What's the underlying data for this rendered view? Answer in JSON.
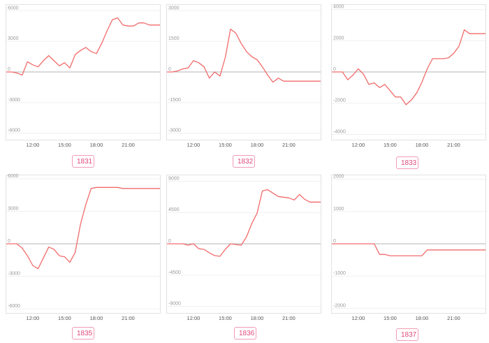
{
  "chart_data": [
    {
      "type": "line",
      "label": "1831",
      "ylim": [
        -6500,
        6500
      ],
      "yticks": [
        6000,
        3000,
        0,
        -3000,
        -6000
      ],
      "ytick_labels": [
        "6000",
        "3000",
        "0",
        "-3000",
        "-6000"
      ],
      "xlim": [
        9.5,
        24
      ],
      "xticks": [
        12,
        15,
        18,
        21
      ],
      "xtick_labels": [
        "12:00",
        "15:00",
        "18:00",
        "21:00"
      ],
      "series": [
        {
          "color": "#f26b6b",
          "x": [
            9.5,
            10.0,
            10.5,
            11.0,
            11.5,
            12.0,
            12.5,
            13.0,
            13.5,
            14.0,
            14.5,
            15.0,
            15.5,
            16.0,
            16.5,
            17.0,
            17.5,
            18.0,
            18.5,
            19.0,
            19.5,
            20.0,
            20.5,
            21.0,
            21.5,
            22.0,
            22.5,
            23.0,
            23.5,
            24.0
          ],
          "y": [
            0,
            0,
            -100,
            -300,
            1000,
            700,
            500,
            1100,
            1600,
            1100,
            600,
            900,
            400,
            1700,
            2100,
            2400,
            2000,
            1800,
            2800,
            4000,
            5100,
            5300,
            4600,
            4500,
            4500,
            4800,
            4800,
            4600,
            4600,
            4600
          ]
        }
      ]
    },
    {
      "type": "line",
      "label": "1832",
      "ylim": [
        -3250,
        3250
      ],
      "yticks": [
        3000,
        1500,
        0,
        -1500,
        -3000
      ],
      "ytick_labels": [
        "3000",
        "1500",
        "0",
        "-1500",
        "-3000"
      ],
      "xlim": [
        9.5,
        24
      ],
      "xticks": [
        12,
        15,
        18,
        21
      ],
      "xtick_labels": [
        "12:00",
        "15:00",
        "18:00",
        "21:00"
      ],
      "series": [
        {
          "color": "#f26b6b",
          "x": [
            9.5,
            10.0,
            10.5,
            11.0,
            11.5,
            12.0,
            12.5,
            13.0,
            13.5,
            14.0,
            14.5,
            15.0,
            15.5,
            16.0,
            16.5,
            17.0,
            17.5,
            18.0,
            18.5,
            19.0,
            19.5,
            20.0,
            20.5,
            21.0,
            21.5,
            22.0,
            22.5,
            23.0,
            23.5,
            24.0
          ],
          "y": [
            0,
            0,
            50,
            150,
            200,
            550,
            450,
            250,
            -300,
            0,
            -200,
            700,
            2100,
            1900,
            1400,
            1000,
            750,
            600,
            250,
            -150,
            -500,
            -300,
            -450,
            -450,
            -450,
            -450,
            -450,
            -450,
            -450,
            -450
          ]
        }
      ]
    },
    {
      "type": "line",
      "label": "1833",
      "ylim": [
        -4250,
        4250
      ],
      "yticks": [
        4000,
        2000,
        0,
        -2000,
        -4000
      ],
      "ytick_labels": [
        "4000",
        "2000",
        "0",
        "-2000",
        "-4000"
      ],
      "xlim": [
        9.5,
        24
      ],
      "xticks": [
        12,
        15,
        18,
        21
      ],
      "xtick_labels": [
        "12:00",
        "15:00",
        "18:00",
        "21:00"
      ],
      "series": [
        {
          "color": "#f26b6b",
          "x": [
            9.5,
            10.0,
            10.5,
            11.0,
            11.5,
            12.0,
            12.5,
            13.0,
            13.5,
            14.0,
            14.5,
            15.0,
            15.5,
            16.0,
            16.5,
            17.0,
            17.5,
            18.0,
            18.5,
            19.0,
            19.5,
            20.0,
            20.5,
            21.0,
            21.5,
            22.0,
            22.5,
            23.0,
            23.5,
            24.0
          ],
          "y": [
            0,
            0,
            0,
            -500,
            -200,
            200,
            -150,
            -800,
            -700,
            -1000,
            -800,
            -1200,
            -1600,
            -1600,
            -2100,
            -1800,
            -1350,
            -650,
            200,
            850,
            850,
            850,
            900,
            1200,
            1650,
            2700,
            2450,
            2450,
            2450,
            2450
          ]
        }
      ]
    },
    {
      "type": "line",
      "label": "1835",
      "ylim": [
        -6250,
        6250
      ],
      "yticks": [
        6000,
        3000,
        0,
        -3000,
        -6000
      ],
      "ytick_labels": [
        "6000",
        "3000",
        "0",
        "-3000",
        "-6000"
      ],
      "xlim": [
        9.5,
        24
      ],
      "xticks": [
        12,
        15,
        18,
        21
      ],
      "xtick_labels": [
        "12:00",
        "15:00",
        "18:00",
        "21:00"
      ],
      "series": [
        {
          "color": "#f26b6b",
          "x": [
            9.5,
            10.0,
            10.5,
            11.0,
            11.5,
            12.0,
            12.5,
            13.0,
            13.5,
            14.0,
            14.5,
            15.0,
            15.5,
            16.0,
            16.5,
            17.0,
            17.5,
            18.0,
            18.5,
            19.0,
            19.5,
            20.0,
            20.5,
            21.0,
            21.5,
            22.0,
            22.5,
            23.0,
            23.5,
            24.0
          ],
          "y": [
            0,
            0,
            0,
            -400,
            -1100,
            -2000,
            -2300,
            -1300,
            -300,
            -500,
            -1100,
            -1200,
            -1700,
            -800,
            1800,
            3600,
            5100,
            5200,
            5200,
            5200,
            5200,
            5200,
            5100,
            5100,
            5100,
            5100,
            5100,
            5100,
            5100,
            5100
          ]
        }
      ]
    },
    {
      "type": "line",
      "label": "1836",
      "ylim": [
        -9750,
        9750
      ],
      "yticks": [
        9000,
        4500,
        0,
        -4500,
        -9000
      ],
      "ytick_labels": [
        "9000",
        "4500",
        "0",
        "-4500",
        "-9000"
      ],
      "xlim": [
        9.5,
        24
      ],
      "xticks": [
        12,
        15,
        18,
        21
      ],
      "xtick_labels": [
        "12:00",
        "15:00",
        "18:00",
        "21:00"
      ],
      "series": [
        {
          "color": "#f26b6b",
          "x": [
            9.5,
            10.0,
            10.5,
            11.0,
            11.5,
            12.0,
            12.5,
            13.0,
            13.5,
            14.0,
            14.5,
            15.0,
            15.5,
            16.0,
            16.5,
            17.0,
            17.5,
            18.0,
            18.5,
            19.0,
            19.5,
            20.0,
            20.5,
            21.0,
            21.5,
            22.0,
            22.5,
            23.0,
            23.5,
            24.0
          ],
          "y": [
            0,
            0,
            0,
            0,
            -200,
            0,
            -700,
            -800,
            -1300,
            -1700,
            -1800,
            -800,
            0,
            -100,
            -200,
            1000,
            2900,
            4400,
            7600,
            7800,
            7300,
            6800,
            6700,
            6600,
            6300,
            7100,
            6400,
            6000,
            6000,
            6000
          ]
        }
      ]
    },
    {
      "type": "line",
      "label": "1837",
      "ylim": [
        -2100,
        2100
      ],
      "yticks": [
        2000,
        1000,
        0,
        -1000,
        -2000
      ],
      "ytick_labels": [
        "2000",
        "1000",
        "0",
        "-1000",
        "-2000"
      ],
      "xlim": [
        9.5,
        24
      ],
      "xticks": [
        12,
        15,
        18,
        21
      ],
      "xtick_labels": [
        "12:00",
        "15:00",
        "18:00",
        "21:00"
      ],
      "series": [
        {
          "color": "#f26b6b",
          "x": [
            9.5,
            10.0,
            10.5,
            11.0,
            11.5,
            12.0,
            12.5,
            13.0,
            13.5,
            14.0,
            14.5,
            15.0,
            15.5,
            16.0,
            16.5,
            17.0,
            17.5,
            18.0,
            18.5,
            19.0,
            19.5,
            20.0,
            20.5,
            21.0,
            21.5,
            22.0,
            22.5,
            23.0,
            23.5,
            24.0
          ],
          "y": [
            0,
            0,
            0,
            0,
            0,
            0,
            0,
            0,
            0,
            -330,
            -330,
            -370,
            -370,
            -370,
            -370,
            -370,
            -370,
            -370,
            -190,
            -190,
            -190,
            -190,
            -190,
            -190,
            -190,
            -190,
            -190,
            -190,
            -190,
            -190
          ]
        }
      ]
    }
  ]
}
